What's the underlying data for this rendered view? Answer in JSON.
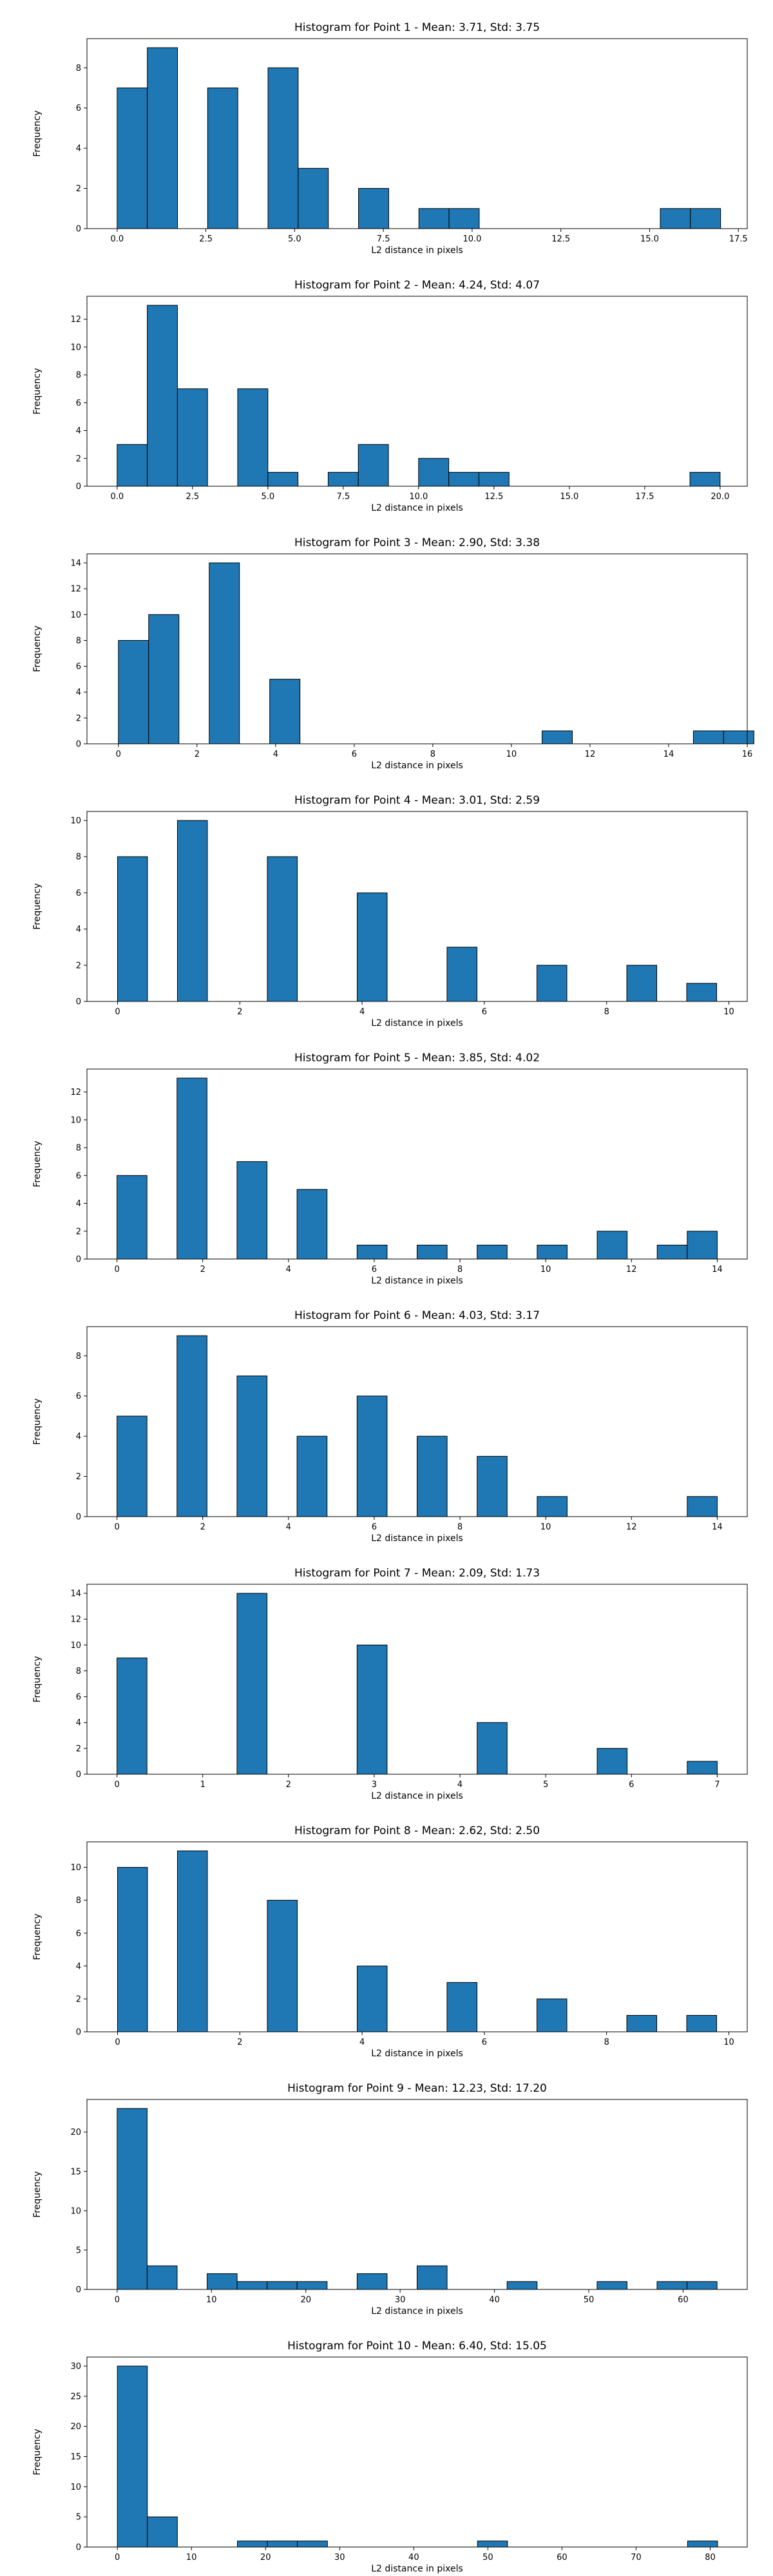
{
  "xlabel": "L2 distance in pixels",
  "ylabel": "Frequency",
  "bar_color": "#1f77b4",
  "chart_data": [
    {
      "type": "bar",
      "title": "Histogram for Point 1 - Mean: 3.71, Std: 3.75",
      "xlim": [
        -0.85,
        17.75
      ],
      "ylim": [
        0,
        9.45
      ],
      "xticks": [
        0,
        2.5,
        5,
        7.5,
        10,
        12.5,
        15,
        17.5
      ],
      "xtick_labels": [
        "0.0",
        "2.5",
        "5.0",
        "7.5",
        "10.0",
        "12.5",
        "15.0",
        "17.5"
      ],
      "yticks": [
        0,
        2,
        4,
        6,
        8
      ],
      "bin_width": 0.85,
      "bins": [
        {
          "x0": 0.0,
          "count": 7
        },
        {
          "x0": 0.85,
          "count": 9
        },
        {
          "x0": 2.55,
          "count": 7
        },
        {
          "x0": 4.25,
          "count": 8
        },
        {
          "x0": 5.1,
          "count": 3
        },
        {
          "x0": 6.8,
          "count": 2
        },
        {
          "x0": 8.5,
          "count": 1
        },
        {
          "x0": 9.35,
          "count": 1
        },
        {
          "x0": 15.3,
          "count": 1
        },
        {
          "x0": 16.15,
          "count": 1
        }
      ]
    },
    {
      "type": "bar",
      "title": "Histogram for Point 2 - Mean: 4.24, Std: 4.07",
      "xlim": [
        -1.0,
        20.9
      ],
      "ylim": [
        0,
        13.65
      ],
      "xticks": [
        0,
        2.5,
        5,
        7.5,
        10,
        12.5,
        15,
        17.5,
        20
      ],
      "xtick_labels": [
        "0.0",
        "2.5",
        "5.0",
        "7.5",
        "10.0",
        "12.5",
        "15.0",
        "17.5",
        "20.0"
      ],
      "yticks": [
        0,
        2,
        4,
        6,
        8,
        10,
        12
      ],
      "bin_width": 1.0,
      "bins": [
        {
          "x0": 0.0,
          "count": 3
        },
        {
          "x0": 1.0,
          "count": 13
        },
        {
          "x0": 2.0,
          "count": 7
        },
        {
          "x0": 4.0,
          "count": 7
        },
        {
          "x0": 5.0,
          "count": 1
        },
        {
          "x0": 7.0,
          "count": 1
        },
        {
          "x0": 8.0,
          "count": 3
        },
        {
          "x0": 10.0,
          "count": 2
        },
        {
          "x0": 11.0,
          "count": 1
        },
        {
          "x0": 12.0,
          "count": 1
        },
        {
          "x0": 19.0,
          "count": 1
        }
      ]
    },
    {
      "type": "bar",
      "title": "Histogram for Point 3 - Mean: 2.90, Std: 3.38",
      "xlim": [
        -0.8,
        16.0
      ],
      "ylim": [
        0,
        14.7
      ],
      "xticks": [
        0,
        2,
        4,
        6,
        8,
        10,
        12,
        14,
        16
      ],
      "xtick_labels": [
        "0",
        "2",
        "4",
        "6",
        "8",
        "10",
        "12",
        "14",
        "16"
      ],
      "yticks": [
        0,
        2,
        4,
        6,
        8,
        10,
        12,
        14
      ],
      "bin_width": 0.77,
      "bins": [
        {
          "x0": 0.0,
          "count": 8
        },
        {
          "x0": 0.77,
          "count": 10
        },
        {
          "x0": 2.31,
          "count": 14
        },
        {
          "x0": 3.85,
          "count": 5
        },
        {
          "x0": 10.78,
          "count": 1
        },
        {
          "x0": 14.63,
          "count": 1
        },
        {
          "x0": 15.4,
          "count": 1
        }
      ]
    },
    {
      "type": "bar",
      "title": "Histogram for Point 4 - Mean: 3.01, Std: 2.59",
      "xlim": [
        -0.5,
        10.3
      ],
      "ylim": [
        0,
        10.5
      ],
      "xticks": [
        0,
        2,
        4,
        6,
        8,
        10
      ],
      "xtick_labels": [
        "0",
        "2",
        "4",
        "6",
        "8",
        "10"
      ],
      "yticks": [
        0,
        2,
        4,
        6,
        8,
        10
      ],
      "bin_width": 0.49,
      "bins": [
        {
          "x0": 0.0,
          "count": 8
        },
        {
          "x0": 0.98,
          "count": 10
        },
        {
          "x0": 2.45,
          "count": 8
        },
        {
          "x0": 3.92,
          "count": 6
        },
        {
          "x0": 5.39,
          "count": 3
        },
        {
          "x0": 6.86,
          "count": 2
        },
        {
          "x0": 8.33,
          "count": 2
        },
        {
          "x0": 9.31,
          "count": 1
        }
      ]
    },
    {
      "type": "bar",
      "title": "Histogram for Point 5 - Mean: 3.85, Std: 4.02",
      "xlim": [
        -0.7,
        14.7
      ],
      "ylim": [
        0,
        13.65
      ],
      "xticks": [
        0,
        2,
        4,
        6,
        8,
        10,
        12,
        14
      ],
      "xtick_labels": [
        "0",
        "2",
        "4",
        "6",
        "8",
        "10",
        "12",
        "14"
      ],
      "yticks": [
        0,
        2,
        4,
        6,
        8,
        10,
        12
      ],
      "bin_width": 0.7,
      "bins": [
        {
          "x0": 0.0,
          "count": 6
        },
        {
          "x0": 1.4,
          "count": 13
        },
        {
          "x0": 2.8,
          "count": 7
        },
        {
          "x0": 4.2,
          "count": 5
        },
        {
          "x0": 5.6,
          "count": 1
        },
        {
          "x0": 7.0,
          "count": 1
        },
        {
          "x0": 8.4,
          "count": 1
        },
        {
          "x0": 9.8,
          "count": 1
        },
        {
          "x0": 11.2,
          "count": 2
        },
        {
          "x0": 12.6,
          "count": 1
        },
        {
          "x0": 13.3,
          "count": 2
        }
      ]
    },
    {
      "type": "bar",
      "title": "Histogram for Point 6 - Mean: 4.03, Std: 3.17",
      "xlim": [
        -0.7,
        14.7
      ],
      "ylim": [
        0,
        9.45
      ],
      "xticks": [
        0,
        2,
        4,
        6,
        8,
        10,
        12,
        14
      ],
      "xtick_labels": [
        "0",
        "2",
        "4",
        "6",
        "8",
        "10",
        "12",
        "14"
      ],
      "yticks": [
        0,
        2,
        4,
        6,
        8
      ],
      "bin_width": 0.7,
      "bins": [
        {
          "x0": 0.0,
          "count": 5
        },
        {
          "x0": 1.4,
          "count": 9
        },
        {
          "x0": 2.8,
          "count": 7
        },
        {
          "x0": 4.2,
          "count": 4
        },
        {
          "x0": 5.6,
          "count": 6
        },
        {
          "x0": 7.0,
          "count": 4
        },
        {
          "x0": 8.4,
          "count": 3
        },
        {
          "x0": 9.8,
          "count": 1
        },
        {
          "x0": 13.3,
          "count": 1
        }
      ]
    },
    {
      "type": "bar",
      "title": "Histogram for Point 7 - Mean: 2.09, Std: 1.73",
      "xlim": [
        -0.35,
        7.35
      ],
      "ylim": [
        0,
        14.7
      ],
      "xticks": [
        0,
        1,
        2,
        3,
        4,
        5,
        6,
        7
      ],
      "xtick_labels": [
        "0",
        "1",
        "2",
        "3",
        "4",
        "5",
        "6",
        "7"
      ],
      "yticks": [
        0,
        2,
        4,
        6,
        8,
        10,
        12,
        14
      ],
      "bin_width": 0.35,
      "bins": [
        {
          "x0": 0.0,
          "count": 9
        },
        {
          "x0": 1.4,
          "count": 14
        },
        {
          "x0": 2.8,
          "count": 10
        },
        {
          "x0": 4.2,
          "count": 4
        },
        {
          "x0": 5.6,
          "count": 2
        },
        {
          "x0": 6.65,
          "count": 1
        }
      ]
    },
    {
      "type": "bar",
      "title": "Histogram for Point 8 - Mean: 2.62, Std: 2.50",
      "xlim": [
        -0.5,
        10.3
      ],
      "ylim": [
        0,
        11.55
      ],
      "xticks": [
        0,
        2,
        4,
        6,
        8,
        10
      ],
      "xtick_labels": [
        "0",
        "2",
        "4",
        "6",
        "8",
        "10"
      ],
      "yticks": [
        0,
        2,
        4,
        6,
        8,
        10
      ],
      "bin_width": 0.49,
      "bins": [
        {
          "x0": 0.0,
          "count": 10
        },
        {
          "x0": 0.98,
          "count": 11
        },
        {
          "x0": 2.45,
          "count": 8
        },
        {
          "x0": 3.92,
          "count": 4
        },
        {
          "x0": 5.39,
          "count": 3
        },
        {
          "x0": 6.86,
          "count": 2
        },
        {
          "x0": 8.33,
          "count": 1
        },
        {
          "x0": 9.31,
          "count": 1
        }
      ]
    },
    {
      "type": "bar",
      "title": "Histogram for Point 9 - Mean: 12.23, Std: 17.20",
      "xlim": [
        -3.2,
        66.8
      ],
      "ylim": [
        0,
        24.15
      ],
      "xticks": [
        0,
        10,
        20,
        30,
        40,
        50,
        60
      ],
      "xtick_labels": [
        "0",
        "10",
        "20",
        "30",
        "40",
        "50",
        "60"
      ],
      "yticks": [
        0,
        5,
        10,
        15,
        20
      ],
      "bin_width": 3.18,
      "bins": [
        {
          "x0": 0.0,
          "count": 23
        },
        {
          "x0": 3.18,
          "count": 3
        },
        {
          "x0": 9.54,
          "count": 2
        },
        {
          "x0": 12.72,
          "count": 1
        },
        {
          "x0": 15.9,
          "count": 1
        },
        {
          "x0": 19.08,
          "count": 1
        },
        {
          "x0": 25.44,
          "count": 2
        },
        {
          "x0": 31.8,
          "count": 3
        },
        {
          "x0": 41.34,
          "count": 1
        },
        {
          "x0": 50.88,
          "count": 1
        },
        {
          "x0": 57.24,
          "count": 1
        },
        {
          "x0": 60.42,
          "count": 1
        }
      ]
    },
    {
      "type": "bar",
      "title": "Histogram for Point 10 - Mean: 6.40, Std: 15.05",
      "xlim": [
        -4.1,
        85.0
      ],
      "ylim": [
        0,
        31.5
      ],
      "xticks": [
        0,
        10,
        20,
        30,
        40,
        50,
        60,
        70,
        80
      ],
      "xtick_labels": [
        "0",
        "10",
        "20",
        "30",
        "40",
        "50",
        "60",
        "70",
        "80"
      ],
      "yticks": [
        0,
        5,
        10,
        15,
        20,
        25,
        30
      ],
      "bin_width": 4.05,
      "bins": [
        {
          "x0": 0.0,
          "count": 30
        },
        {
          "x0": 4.05,
          "count": 5
        },
        {
          "x0": 16.2,
          "count": 1
        },
        {
          "x0": 20.25,
          "count": 1
        },
        {
          "x0": 24.3,
          "count": 1
        },
        {
          "x0": 48.6,
          "count": 1
        },
        {
          "x0": 76.95,
          "count": 1
        }
      ]
    }
  ]
}
